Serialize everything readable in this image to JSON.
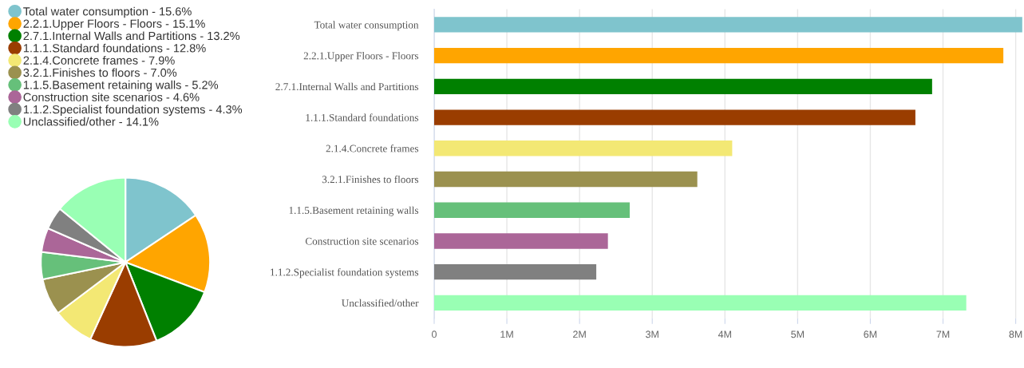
{
  "chart_data": [
    {
      "type": "pie",
      "legend": "top left",
      "categories": [
        "Total water consumption - 15.6%",
        "2.2.1.Upper Floors - Floors - 15.1%",
        "2.7.1.Internal Walls and Partitions - 13.2%",
        "1.1.1.Standard foundations - 12.8%",
        "2.1.4.Concrete frames - 7.9%",
        "3.2.1.Finishes to floors - 7.0%",
        "1.1.5.Basement retaining walls - 5.2%",
        "Construction site scenarios - 4.6%",
        "1.1.2.Specialist foundation systems - 4.3%",
        "Unclassified/other - 14.1%"
      ],
      "values": [
        15.6,
        15.1,
        13.2,
        12.8,
        7.9,
        7.0,
        5.2,
        4.6,
        4.3,
        14.1
      ],
      "colors": [
        "#7fc4cd",
        "#ffa500",
        "#008000",
        "#9a3d00",
        "#f3e874",
        "#9b914f",
        "#66c07a",
        "#ab6698",
        "#808080",
        "#99ffb4"
      ]
    },
    {
      "type": "bar",
      "orientation": "horizontal",
      "grid": "x",
      "categories": [
        "Total water consumption",
        "2.2.1.Upper Floors - Floors",
        "2.7.1.Internal Walls and Partitions",
        "1.1.1.Standard foundations",
        "2.1.4.Concrete frames",
        "3.2.1.Finishes to floors",
        "1.1.5.Basement retaining walls",
        "Construction site scenarios",
        "1.1.2.Specialist foundation systems",
        "Unclassified/other"
      ],
      "values": [
        8.09,
        7.83,
        6.85,
        6.62,
        4.1,
        3.62,
        2.69,
        2.39,
        2.23,
        7.32
      ],
      "colors": [
        "#7fc4cd",
        "#ffa500",
        "#008000",
        "#9a3d00",
        "#f3e874",
        "#9b914f",
        "#66c07a",
        "#ab6698",
        "#808080",
        "#99ffb4"
      ],
      "xlim": [
        0,
        8.1
      ],
      "xticks": [
        0,
        {
          "value": 1,
          "label": "1M"
        },
        {
          "value": 2,
          "label": "2M"
        },
        {
          "value": 3,
          "label": "3M"
        },
        {
          "value": 4,
          "label": "4M"
        },
        {
          "value": 5,
          "label": "5M"
        },
        {
          "value": 6,
          "label": "6M"
        },
        {
          "value": 7,
          "label": "7M"
        },
        {
          "value": 8,
          "label": "8M"
        }
      ]
    }
  ]
}
